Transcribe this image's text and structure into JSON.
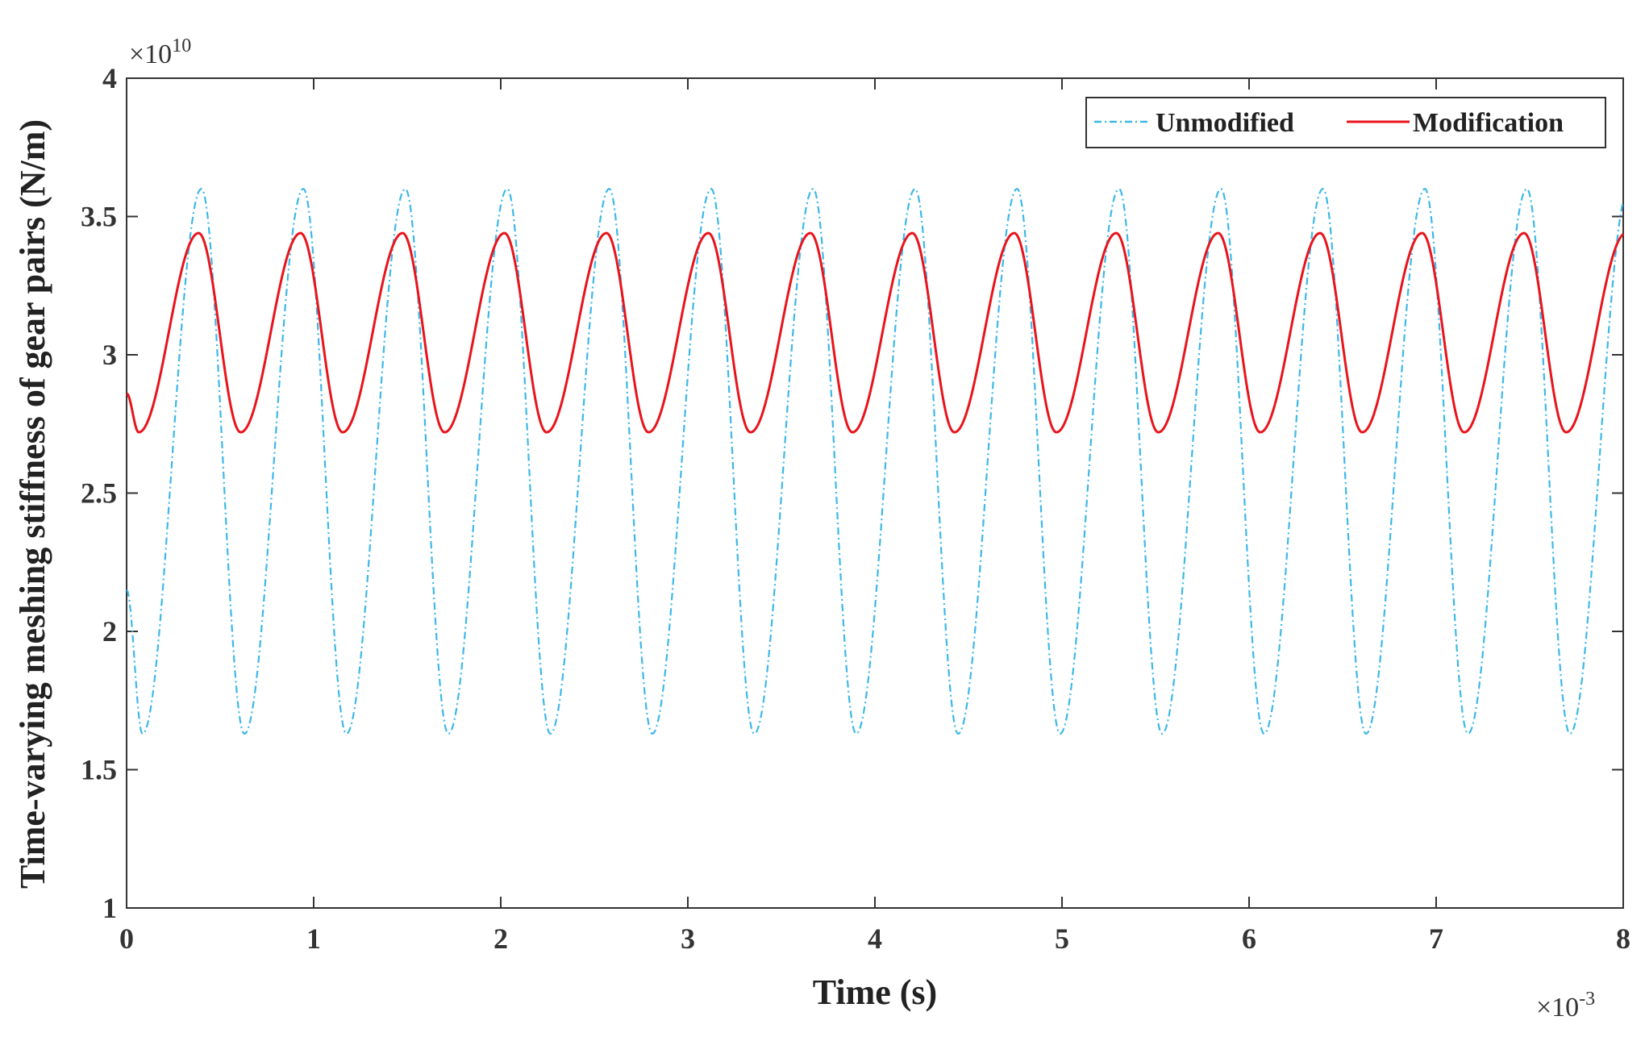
{
  "chart_data": {
    "type": "line",
    "xlabel": "Time (s)",
    "ylabel": "Time-varying meshing stiffness of gear pairs (N/m)",
    "x_multiplier": "×10",
    "x_exponent": "-3",
    "y_multiplier": "×10",
    "y_exponent": "10",
    "xlim": [
      0,
      8
    ],
    "ylim": [
      1,
      4
    ],
    "xticks": [
      0,
      1,
      2,
      3,
      4,
      5,
      6,
      7,
      8
    ],
    "xtick_labels": [
      "0",
      "1",
      "2",
      "3",
      "4",
      "5",
      "6",
      "7",
      "8"
    ],
    "yticks": [
      1,
      1.5,
      2,
      2.5,
      3,
      3.5,
      4
    ],
    "ytick_labels": [
      "1",
      "1.5",
      "2",
      "2.5",
      "3",
      "3.5",
      "4"
    ],
    "legend_position": "top-right",
    "series": [
      {
        "name": "Unmodified",
        "color": "#3db8e8",
        "style": "dash-dot",
        "period": 0.545,
        "start": 2.15,
        "min": 1.63,
        "max": 3.6,
        "first_min_x": 0.085,
        "first_max_x": 0.4
      },
      {
        "name": "Modification",
        "color": "#e8141c",
        "style": "solid",
        "period": 0.545,
        "start": 2.86,
        "min": 2.72,
        "max": 3.44,
        "first_min_x": 0.065,
        "first_max_x": 0.385
      }
    ]
  }
}
